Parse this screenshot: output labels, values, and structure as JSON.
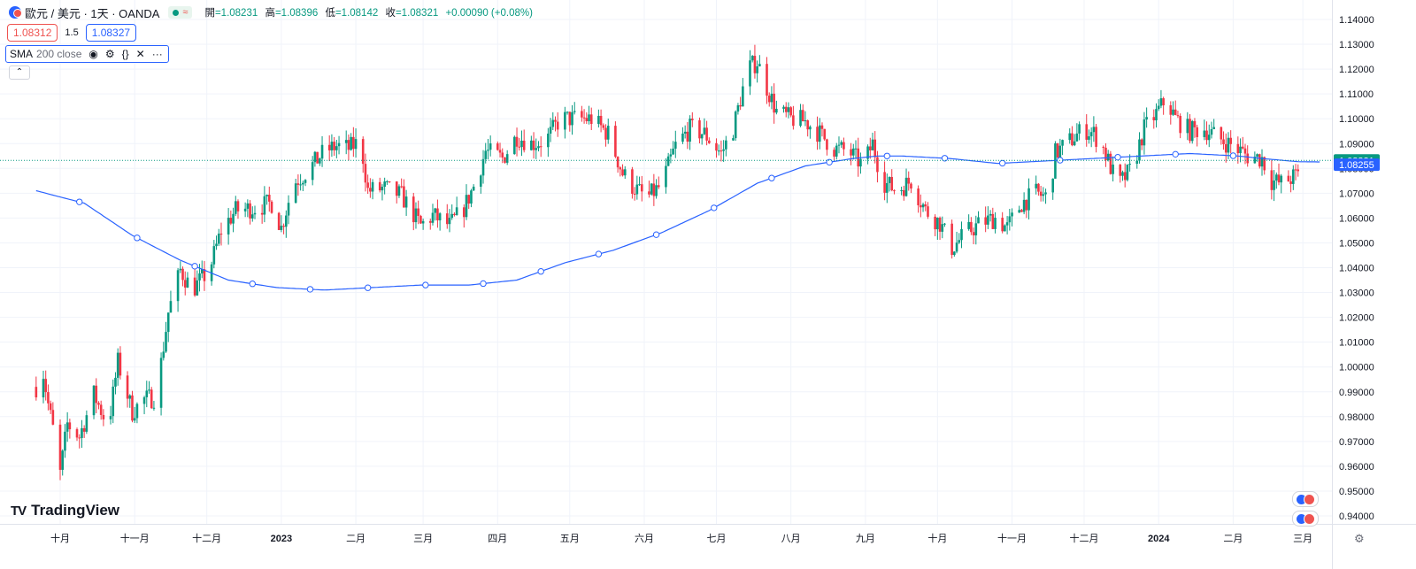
{
  "header": {
    "symbol": "歐元 / 美元 · 1天 · OANDA",
    "status_glyph": "≈",
    "ohlc": [
      {
        "label": "開",
        "value": "=1.08231"
      },
      {
        "label": "高",
        "value": "=1.08396"
      },
      {
        "label": "低",
        "value": "=1.08142"
      },
      {
        "label": "收",
        "value": "=1.08321"
      },
      {
        "label": "",
        "value": "+0.00090 (+0.08%)"
      }
    ]
  },
  "trade": {
    "sell": "1.08312",
    "spread": "1.5",
    "buy": "1.08327"
  },
  "indicator": {
    "name": "SMA",
    "params": "200 close",
    "icons": [
      "eye-icon",
      "settings-icon",
      "source-code-icon",
      "close-icon",
      "more-icon"
    ]
  },
  "collapse_glyph": "⌃",
  "brand": {
    "logo": "TV",
    "name": "TradingView"
  },
  "colors": {
    "up": "#089981",
    "down": "#f23645",
    "sma": "#2962ff",
    "grid": "#f0f3fa",
    "axis_text": "#131722"
  },
  "chart_data": {
    "type": "candlestick",
    "title": "歐元 / 美元 · 1天 · OANDA",
    "ylim": [
      0.935,
      1.145
    ],
    "y_ticks": [
      "1.14000",
      "1.13000",
      "1.12000",
      "1.11000",
      "1.10000",
      "1.09000",
      "1.08000",
      "1.07000",
      "1.06000",
      "1.05000",
      "1.04000",
      "1.03000",
      "1.02000",
      "1.01000",
      "1.00000",
      "0.99000",
      "0.98000",
      "0.97000",
      "0.96000",
      "0.95000",
      "0.94000"
    ],
    "x_ticks": [
      {
        "label": "十月",
        "day": 0,
        "bold": false
      },
      {
        "label": "十一月",
        "day": 31,
        "bold": false
      },
      {
        "label": "十二月",
        "day": 61,
        "bold": false
      },
      {
        "label": "2023",
        "day": 92,
        "bold": true
      },
      {
        "label": "二月",
        "day": 123,
        "bold": false
      },
      {
        "label": "三月",
        "day": 151,
        "bold": false
      },
      {
        "label": "四月",
        "day": 182,
        "bold": false
      },
      {
        "label": "五月",
        "day": 212,
        "bold": false
      },
      {
        "label": "六月",
        "day": 243,
        "bold": false
      },
      {
        "label": "七月",
        "day": 273,
        "bold": false
      },
      {
        "label": "八月",
        "day": 304,
        "bold": false
      },
      {
        "label": "九月",
        "day": 335,
        "bold": false
      },
      {
        "label": "十月",
        "day": 365,
        "bold": false
      },
      {
        "label": "十一月",
        "day": 396,
        "bold": false
      },
      {
        "label": "十二月",
        "day": 426,
        "bold": false
      },
      {
        "label": "2024",
        "day": 457,
        "bold": true
      },
      {
        "label": "二月",
        "day": 488,
        "bold": false
      },
      {
        "label": "三月",
        "day": 517,
        "bold": false
      }
    ],
    "price_path": [
      [
        -10,
        0.992
      ],
      [
        -8,
        1.004
      ],
      [
        -5,
        0.985
      ],
      [
        -3,
        0.975
      ],
      [
        0,
        0.957
      ],
      [
        3,
        0.977
      ],
      [
        8,
        0.972
      ],
      [
        14,
        0.989
      ],
      [
        20,
        0.976
      ],
      [
        24,
        1.002
      ],
      [
        30,
        0.982
      ],
      [
        35,
        0.987
      ],
      [
        40,
        0.988
      ],
      [
        45,
        1.022
      ],
      [
        50,
        1.039
      ],
      [
        55,
        1.031
      ],
      [
        62,
        1.039
      ],
      [
        67,
        1.055
      ],
      [
        73,
        1.063
      ],
      [
        80,
        1.064
      ],
      [
        88,
        1.066
      ],
      [
        92,
        1.056
      ],
      [
        97,
        1.074
      ],
      [
        103,
        1.079
      ],
      [
        110,
        1.087
      ],
      [
        115,
        1.089
      ],
      [
        120,
        1.088
      ],
      [
        125,
        1.091
      ],
      [
        128,
        1.071
      ],
      [
        135,
        1.072
      ],
      [
        142,
        1.069
      ],
      [
        150,
        1.057
      ],
      [
        155,
        1.061
      ],
      [
        162,
        1.057
      ],
      [
        168,
        1.064
      ],
      [
        173,
        1.075
      ],
      [
        177,
        1.087
      ],
      [
        184,
        1.084
      ],
      [
        190,
        1.093
      ],
      [
        196,
        1.09
      ],
      [
        202,
        1.091
      ],
      [
        208,
        1.1
      ],
      [
        215,
        1.1
      ],
      [
        221,
        1.1
      ],
      [
        228,
        1.094
      ],
      [
        234,
        1.078
      ],
      [
        238,
        1.073
      ],
      [
        244,
        1.068
      ],
      [
        250,
        1.073
      ],
      [
        256,
        1.089
      ],
      [
        262,
        1.096
      ],
      [
        268,
        1.094
      ],
      [
        275,
        1.086
      ],
      [
        280,
        1.096
      ],
      [
        286,
        1.12
      ],
      [
        290,
        1.123
      ],
      [
        293,
        1.115
      ],
      [
        298,
        1.103
      ],
      [
        304,
        1.1
      ],
      [
        310,
        1.099
      ],
      [
        316,
        1.094
      ],
      [
        322,
        1.088
      ],
      [
        328,
        1.087
      ],
      [
        334,
        1.081
      ],
      [
        338,
        1.09
      ],
      [
        342,
        1.075
      ],
      [
        348,
        1.071
      ],
      [
        354,
        1.075
      ],
      [
        360,
        1.063
      ],
      [
        366,
        1.058
      ],
      [
        371,
        1.048
      ],
      [
        377,
        1.054
      ],
      [
        383,
        1.058
      ],
      [
        389,
        1.06
      ],
      [
        394,
        1.056
      ],
      [
        400,
        1.066
      ],
      [
        406,
        1.07
      ],
      [
        411,
        1.068
      ],
      [
        414,
        1.086
      ],
      [
        420,
        1.091
      ],
      [
        426,
        1.096
      ],
      [
        430,
        1.094
      ],
      [
        434,
        1.088
      ],
      [
        440,
        1.073
      ],
      [
        446,
        1.08
      ],
      [
        451,
        1.096
      ],
      [
        456,
        1.102
      ],
      [
        460,
        1.108
      ],
      [
        464,
        1.1
      ],
      [
        470,
        1.095
      ],
      [
        476,
        1.096
      ],
      [
        482,
        1.092
      ],
      [
        488,
        1.089
      ],
      [
        494,
        1.085
      ],
      [
        500,
        1.084
      ],
      [
        504,
        1.075
      ],
      [
        508,
        1.074
      ],
      [
        514,
        1.077
      ],
      [
        520,
        1.08
      ],
      [
        524,
        1.083
      ]
    ],
    "sma": [
      [
        -10,
        1.071
      ],
      [
        10,
        1.066
      ],
      [
        30,
        1.053
      ],
      [
        50,
        1.043
      ],
      [
        70,
        1.035
      ],
      [
        90,
        1.032
      ],
      [
        110,
        1.031
      ],
      [
        130,
        1.032
      ],
      [
        150,
        1.033
      ],
      [
        170,
        1.033
      ],
      [
        190,
        1.035
      ],
      [
        210,
        1.042
      ],
      [
        230,
        1.047
      ],
      [
        250,
        1.054
      ],
      [
        270,
        1.063
      ],
      [
        290,
        1.074
      ],
      [
        310,
        1.081
      ],
      [
        330,
        1.084
      ],
      [
        340,
        1.085
      ],
      [
        350,
        1.085
      ],
      [
        370,
        1.084
      ],
      [
        390,
        1.082
      ],
      [
        410,
        1.083
      ],
      [
        430,
        1.084
      ],
      [
        450,
        1.085
      ],
      [
        470,
        1.086
      ],
      [
        490,
        1.085
      ],
      [
        500,
        1.084
      ],
      [
        515,
        1.0827
      ],
      [
        524,
        1.0826
      ]
    ],
    "last_price": 1.08321,
    "last_price_label": "1.08321",
    "sma_last": 1.08255,
    "sma_last_label": "1.08255"
  }
}
